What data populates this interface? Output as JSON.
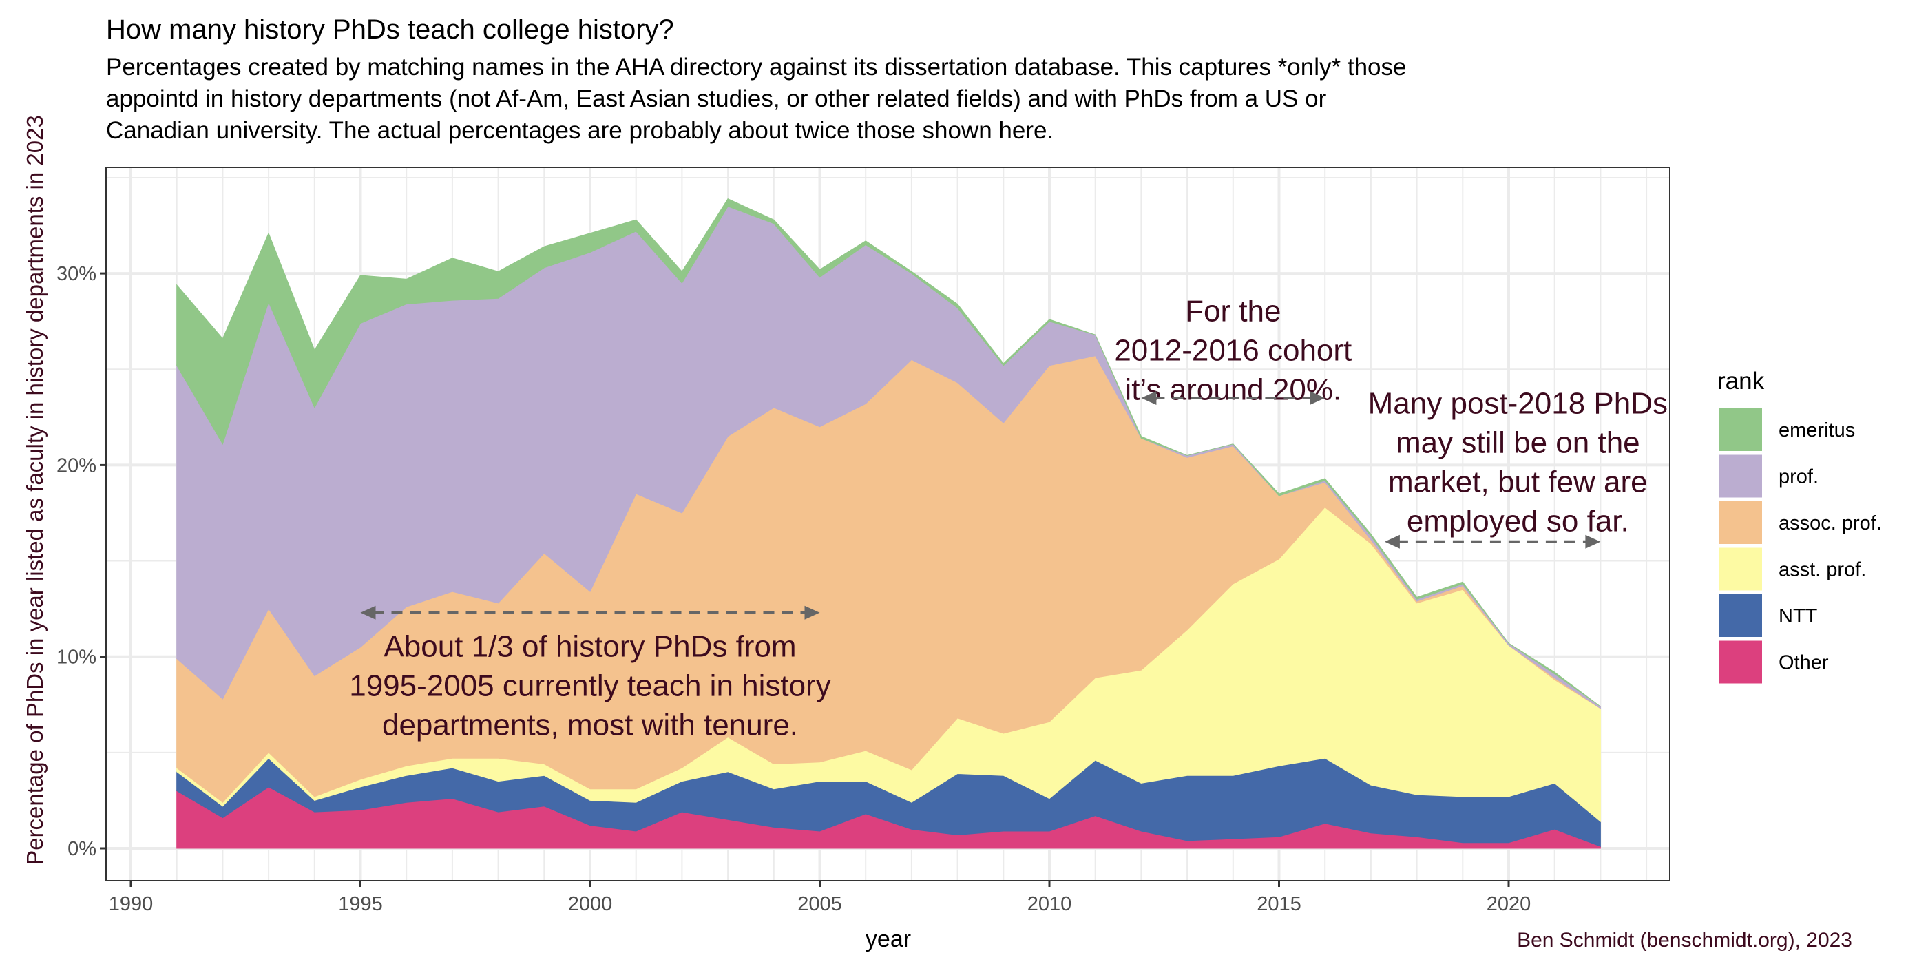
{
  "title": "How many history PhDs teach college history?",
  "subtitle": [
    "Percentages created by matching names in the AHA directory against its dissertation database. This captures *only* those",
    "appointd in history departments (not Af-Am, East Asian studies, or other related fields) and with PhDs from a US or",
    "Canadian university. The actual percentages are probably about twice those shown here."
  ],
  "caption": "Ben Schmidt (benschmidt.org), 2023",
  "chart_data": {
    "type": "area",
    "stacked": true,
    "xlabel": "year",
    "ylabel": "Percentage of PhDs in year listed as faculty in history departments in 2023",
    "xlim": [
      1989.5,
      2023.5
    ],
    "ylim": [
      -1.7,
      35.5
    ],
    "x_ticks": [
      "1990",
      "1995",
      "2000",
      "2005",
      "2010",
      "2015",
      "2020"
    ],
    "y_ticks": [
      "0%",
      "10%",
      "20%",
      "30%"
    ],
    "grid": true,
    "legend": {
      "title": "rank",
      "position": "right"
    },
    "x": [
      1991,
      1992,
      1993,
      1994,
      1995,
      1996,
      1997,
      1998,
      1999,
      2000,
      2001,
      2002,
      2003,
      2004,
      2005,
      2006,
      2007,
      2008,
      2009,
      2010,
      2011,
      2012,
      2013,
      2014,
      2015,
      2016,
      2017,
      2018,
      2019,
      2020,
      2021,
      2022
    ],
    "series": [
      {
        "name": "Other",
        "color": "#dc407e",
        "values": [
          3.0,
          1.6,
          3.2,
          1.9,
          2.0,
          2.4,
          2.6,
          1.9,
          2.2,
          1.2,
          0.9,
          1.9,
          1.5,
          1.1,
          0.9,
          1.8,
          1.0,
          0.7,
          0.9,
          0.9,
          1.7,
          0.9,
          0.4,
          0.5,
          0.6,
          1.3,
          0.8,
          0.6,
          0.3,
          0.3,
          1.0,
          0.1
        ]
      },
      {
        "name": "NTT",
        "color": "#4469a8",
        "values": [
          1.0,
          0.6,
          1.5,
          0.6,
          1.2,
          1.4,
          1.6,
          1.6,
          1.6,
          1.3,
          1.5,
          1.6,
          2.5,
          2.0,
          2.6,
          1.7,
          1.4,
          3.2,
          2.9,
          1.7,
          2.9,
          2.5,
          3.4,
          3.3,
          3.7,
          3.4,
          2.5,
          2.2,
          2.4,
          2.4,
          2.4,
          1.3
        ]
      },
      {
        "name": "asst. prof.",
        "color": "#fdfaa3",
        "values": [
          0.2,
          0.2,
          0.3,
          0.2,
          0.4,
          0.5,
          0.5,
          1.2,
          0.6,
          0.6,
          0.7,
          0.7,
          1.8,
          1.3,
          1.0,
          1.6,
          1.7,
          2.9,
          2.2,
          4.0,
          4.3,
          5.9,
          7.6,
          10.0,
          10.8,
          13.1,
          12.6,
          10.0,
          10.8,
          7.9,
          5.4,
          5.9
        ]
      },
      {
        "name": "assoc. prof.",
        "color": "#f4c28e",
        "values": [
          5.7,
          5.4,
          7.5,
          6.3,
          6.9,
          8.3,
          8.7,
          8.1,
          11.0,
          10.3,
          15.4,
          13.3,
          15.7,
          18.6,
          17.5,
          18.1,
          21.4,
          17.5,
          16.2,
          18.6,
          16.8,
          12.1,
          9.0,
          7.2,
          3.3,
          1.3,
          0.2,
          0.1,
          0.2,
          0.0,
          0.1,
          0.0
        ]
      },
      {
        "name": "prof.",
        "color": "#bbadd0",
        "values": [
          15.3,
          13.3,
          16.0,
          14.0,
          16.9,
          15.8,
          15.2,
          15.9,
          14.9,
          17.7,
          13.7,
          12.0,
          12.0,
          9.6,
          7.8,
          8.3,
          4.5,
          3.9,
          3.0,
          2.3,
          1.1,
          0.0,
          0.1,
          0.1,
          0.0,
          0.1,
          0.2,
          0.1,
          0.1,
          0.1,
          0.2,
          0.1
        ]
      },
      {
        "name": "emeritus",
        "color": "#91c788",
        "values": [
          4.2,
          5.5,
          3.6,
          3.0,
          2.5,
          1.3,
          2.2,
          1.4,
          1.1,
          1.0,
          0.6,
          0.6,
          0.4,
          0.2,
          0.4,
          0.2,
          0.1,
          0.2,
          0.1,
          0.1,
          0.0,
          0.1,
          0.0,
          0.0,
          0.1,
          0.1,
          0.1,
          0.1,
          0.1,
          0.0,
          0.1,
          0.0
        ]
      }
    ],
    "annotations": [
      {
        "lines": [
          "About 1/3 of history PhDs from",
          "1995-2005 currently teach in history",
          "departments, most with tenure."
        ],
        "x": 2000,
        "y": 10.0,
        "arrow": {
          "x_from": 1995,
          "x_to": 2005,
          "y": 12.3
        }
      },
      {
        "lines": [
          "For the",
          "2012-2016 cohort",
          "it’s around 20%."
        ],
        "x": 2014,
        "y": 27.5,
        "arrow": {
          "x_from": 2012,
          "x_to": 2016,
          "y": 23.5
        }
      },
      {
        "lines": [
          "Many post-2018 PhDs",
          "may still be on the",
          "market, but few are",
          "employed so far."
        ],
        "x": 2020.2,
        "y": 22.7,
        "arrow": {
          "x_from": 2017.3,
          "x_to": 2022,
          "y": 16.0
        }
      }
    ]
  }
}
